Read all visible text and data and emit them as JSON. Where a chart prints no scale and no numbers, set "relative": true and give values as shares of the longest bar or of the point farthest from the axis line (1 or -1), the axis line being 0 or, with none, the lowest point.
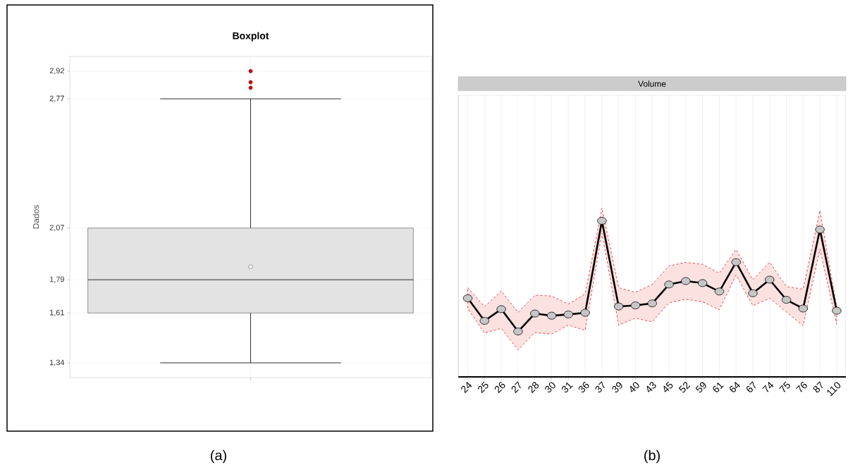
{
  "chart_data": [
    {
      "type": "box",
      "title": "Boxplot",
      "ylabel": "Dados",
      "categories": [
        null
      ],
      "boxes": [
        {
          "low": 1.34,
          "q1": 1.61,
          "median": 1.79,
          "q3": 2.07,
          "high": 2.77,
          "mean": 1.86,
          "outliers": [
            2.83,
            2.86,
            2.92
          ]
        }
      ],
      "color": "#e3e3e3",
      "ylim": [
        1.26,
        3.0
      ],
      "yticks": [
        {
          "value": 1.34,
          "label": "1,34"
        },
        {
          "value": 1.61,
          "label": "1,61"
        },
        {
          "value": 1.79,
          "label": "1,79"
        },
        {
          "value": 2.07,
          "label": "2,07"
        },
        {
          "value": 2.77,
          "label": "2,77"
        },
        {
          "value": 2.92,
          "label": "2,92"
        }
      ],
      "grid": true,
      "tick_labels": "y",
      "annotations": [
        "(a)"
      ]
    },
    {
      "type": "line",
      "title": "Volume",
      "categories": [
        "24",
        "25",
        "26",
        "27",
        "28",
        "30",
        "31",
        "36",
        "37",
        "39",
        "40",
        "43",
        "45",
        "52",
        "59",
        "61",
        "64",
        "67",
        "74",
        "75",
        "76",
        "87",
        "110"
      ],
      "relative": true,
      "series": [
        {
          "color": "#000000",
          "values": [
            0.504,
            0.359,
            0.434,
            0.291,
            0.406,
            0.392,
            0.4,
            0.411,
            1.0,
            0.451,
            0.458,
            0.471,
            0.592,
            0.614,
            0.601,
            0.547,
            0.735,
            0.536,
            0.623,
            0.494,
            0.438,
            0.944,
            0.424
          ],
          "lower": [
            0.437,
            0.28,
            0.311,
            0.173,
            0.284,
            0.274,
            0.332,
            0.298,
            0.921,
            0.332,
            0.376,
            0.352,
            0.475,
            0.497,
            0.481,
            0.43,
            0.653,
            0.456,
            0.504,
            0.416,
            0.328,
            0.819,
            0.338
          ],
          "upper": [
            0.572,
            0.45,
            0.551,
            0.413,
            0.524,
            0.518,
            0.467,
            0.532,
            1.081,
            0.572,
            0.542,
            0.592,
            0.711,
            0.734,
            0.721,
            0.664,
            0.817,
            0.623,
            0.735,
            0.579,
            0.562,
            1.066,
            0.448
          ]
        }
      ],
      "marker": "circle",
      "grid": "x",
      "tick_labels": "x",
      "annotations": [
        "(b)"
      ]
    }
  ]
}
